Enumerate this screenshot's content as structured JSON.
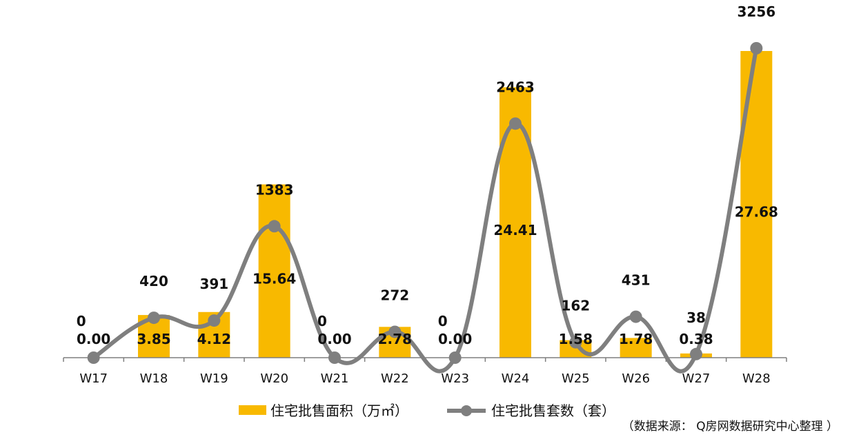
{
  "chart_data": {
    "type": "bar",
    "categories": [
      "W17",
      "W18",
      "W19",
      "W20",
      "W21",
      "W22",
      "W23",
      "W24",
      "W25",
      "W26",
      "W27",
      "W28"
    ],
    "series": [
      {
        "name": "住宅批售面积（万㎡）",
        "type": "bar",
        "color": "#F8B900",
        "values": [
          0.0,
          3.85,
          4.12,
          15.64,
          0.0,
          2.78,
          0.0,
          24.41,
          1.58,
          1.78,
          0.38,
          27.68
        ],
        "labels": [
          "0.00",
          "3.85",
          "4.12",
          "15.64",
          "0.00",
          "2.78",
          "0.00",
          "24.41",
          "1.58",
          "1.78",
          "0.38",
          "27.68"
        ]
      },
      {
        "name": "住宅批售套数（套）",
        "type": "line",
        "color": "#7F7F7F",
        "values": [
          0,
          420,
          391,
          1383,
          0,
          272,
          0,
          2463,
          162,
          431,
          38,
          3256
        ],
        "labels": [
          "0",
          "420",
          "391",
          "1383",
          "0",
          "272",
          "0",
          "2463",
          "162",
          "431",
          "38",
          "3256"
        ]
      }
    ],
    "legend": "bottom",
    "grid": false
  },
  "source_note": "（数据来源： Q房网数据研究中心整理 ）"
}
